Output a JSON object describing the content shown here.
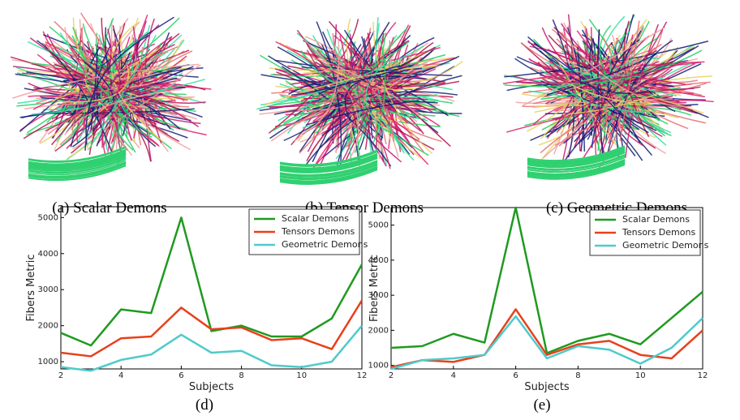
{
  "figure": {
    "panels": [
      {
        "caption": "(a) Scalar Demons"
      },
      {
        "caption": "(b) Tensor Demons"
      },
      {
        "caption": "(c) Geometric Demons"
      }
    ],
    "chart_captions": [
      "(d)",
      "(e)"
    ]
  },
  "chart_data": [
    {
      "type": "line",
      "xlabel": "Subjects",
      "ylabel": "Fibers Metric",
      "legend": "upper right",
      "x": [
        2,
        3,
        4,
        5,
        6,
        7,
        8,
        9,
        10,
        11,
        12
      ],
      "xlim": [
        2,
        12
      ],
      "xticks": [
        2,
        4,
        6,
        8,
        10,
        12
      ],
      "ylim": [
        800,
        5300
      ],
      "yticks": [
        1000,
        2000,
        3000,
        4000,
        5000
      ],
      "series": [
        {
          "name": "Scalar Demons",
          "color": "#1f9a1f",
          "values": [
            1800,
            1450,
            2450,
            2350,
            5000,
            1850,
            2000,
            1700,
            1700,
            2200,
            3700
          ]
        },
        {
          "name": "Tensors Demons",
          "color": "#e8401c",
          "values": [
            1250,
            1150,
            1650,
            1700,
            2500,
            1900,
            1950,
            1600,
            1650,
            1350,
            2700
          ]
        },
        {
          "name": "Geometric Demons",
          "color": "#4fcaca",
          "values": [
            850,
            750,
            1050,
            1200,
            1750,
            1250,
            1300,
            900,
            850,
            1000,
            2000
          ]
        }
      ]
    },
    {
      "type": "line",
      "xlabel": "Subjects",
      "ylabel": "Fibers Metric",
      "legend": "upper right",
      "x": [
        2,
        3,
        4,
        5,
        6,
        7,
        8,
        9,
        10,
        11,
        12
      ],
      "xlim": [
        2,
        12
      ],
      "xticks": [
        2,
        4,
        6,
        8,
        10,
        12
      ],
      "ylim": [
        900,
        5500
      ],
      "yticks": [
        1000,
        2000,
        3000,
        4000,
        5000
      ],
      "series": [
        {
          "name": "Scalar Demons",
          "color": "#1f9a1f",
          "values": [
            1500,
            1550,
            1900,
            1650,
            5500,
            1350,
            1700,
            1900,
            1600,
            2350,
            3100
          ]
        },
        {
          "name": "Tensors Demons",
          "color": "#e8401c",
          "values": [
            950,
            1150,
            1100,
            1300,
            2600,
            1300,
            1600,
            1700,
            1300,
            1200,
            2000
          ]
        },
        {
          "name": "Geometric Demons",
          "color": "#4fcaca",
          "values": [
            900,
            1150,
            1200,
            1300,
            2400,
            1200,
            1550,
            1450,
            1050,
            1500,
            2350
          ]
        }
      ]
    }
  ]
}
